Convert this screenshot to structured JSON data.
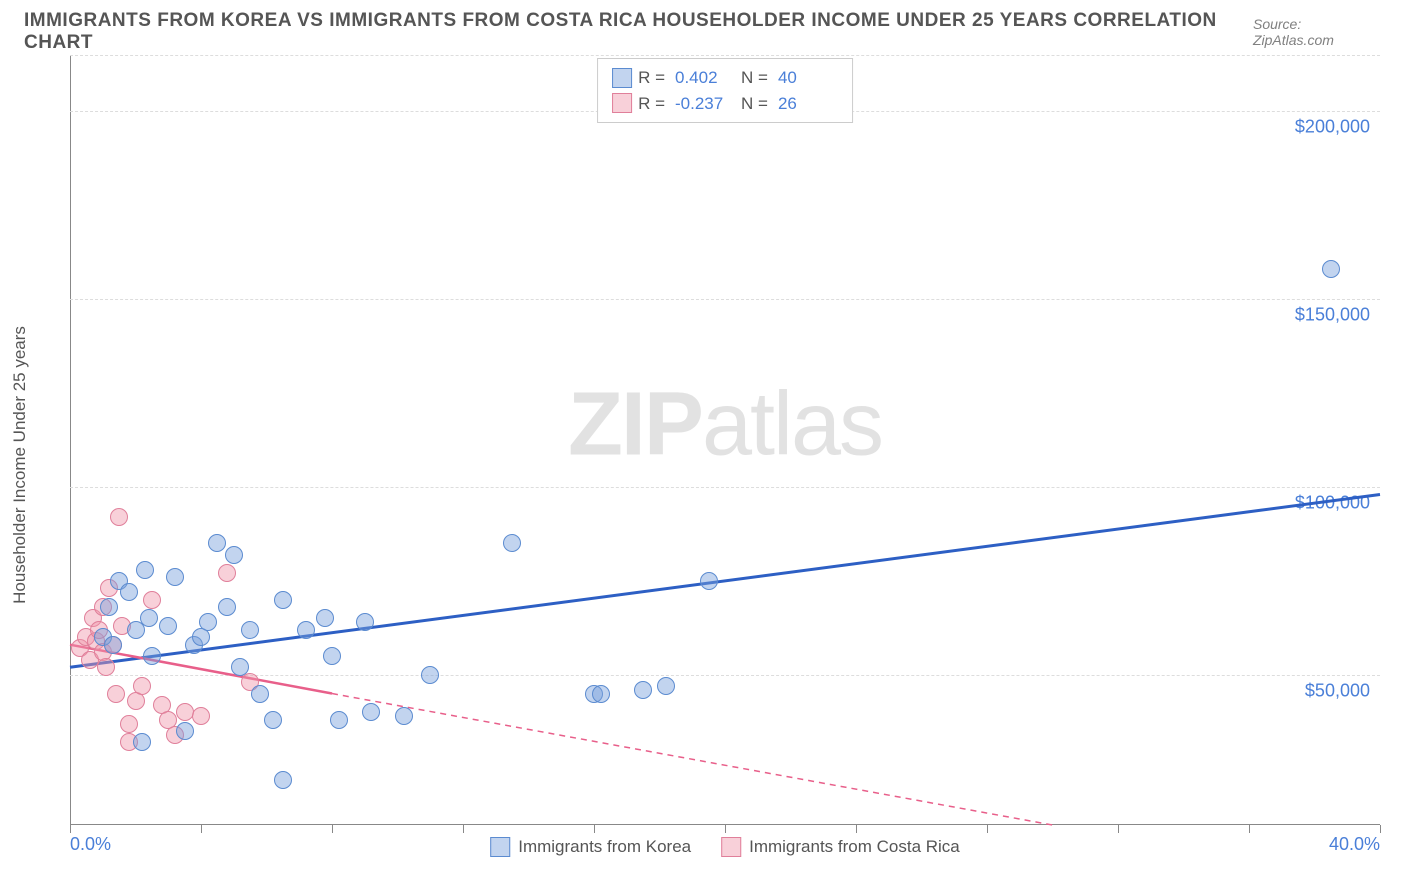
{
  "title": "IMMIGRANTS FROM KOREA VS IMMIGRANTS FROM COSTA RICA HOUSEHOLDER INCOME UNDER 25 YEARS CORRELATION CHART",
  "source": "Source: ZipAtlas.com",
  "y_axis_label": "Householder Income Under 25 years",
  "watermark_bold": "ZIP",
  "watermark_rest": "atlas",
  "colors": {
    "series1_fill": "rgba(120,160,220,0.45)",
    "series1_stroke": "#5b8bd0",
    "series1_line": "#2d5fc4",
    "series2_fill": "rgba(240,150,170,0.45)",
    "series2_stroke": "#e07f9a",
    "series2_line": "#e85f8a",
    "grid": "#dddddd",
    "axis": "#888888",
    "text_axis": "#4a7fd8",
    "text_title": "#555555"
  },
  "chart": {
    "xlim": [
      0,
      40
    ],
    "ylim": [
      10000,
      215000
    ],
    "y_ticks": [
      50000,
      100000,
      150000,
      200000
    ],
    "y_tick_labels": [
      "$50,000",
      "$100,000",
      "$150,000",
      "$200,000"
    ],
    "x_ticks": [
      0,
      4,
      8,
      12,
      16,
      20,
      24,
      28,
      32,
      36,
      40
    ],
    "x_tick_labels": {
      "0": "0.0%",
      "40": "40.0%"
    },
    "point_radius": 9
  },
  "legend_top": {
    "rows": [
      {
        "swatch_fill": "rgba(120,160,220,0.45)",
        "swatch_stroke": "#5b8bd0",
        "r": "0.402",
        "n": "40"
      },
      {
        "swatch_fill": "rgba(240,150,170,0.45)",
        "swatch_stroke": "#e07f9a",
        "r": "-0.237",
        "n": "26"
      }
    ],
    "r_label": "R =",
    "n_label": "N ="
  },
  "legend_bottom": [
    {
      "swatch_fill": "rgba(120,160,220,0.45)",
      "swatch_stroke": "#5b8bd0",
      "label": "Immigrants from Korea"
    },
    {
      "swatch_fill": "rgba(240,150,170,0.45)",
      "swatch_stroke": "#e07f9a",
      "label": "Immigrants from Costa Rica"
    }
  ],
  "series1_points": [
    [
      1.0,
      60000
    ],
    [
      1.2,
      68000
    ],
    [
      1.5,
      75000
    ],
    [
      1.3,
      58000
    ],
    [
      2.0,
      62000
    ],
    [
      1.8,
      72000
    ],
    [
      2.3,
      78000
    ],
    [
      2.4,
      65000
    ],
    [
      2.5,
      55000
    ],
    [
      3.0,
      63000
    ],
    [
      3.2,
      76000
    ],
    [
      2.2,
      32000
    ],
    [
      3.5,
      35000
    ],
    [
      3.8,
      58000
    ],
    [
      4.0,
      60000
    ],
    [
      4.2,
      64000
    ],
    [
      4.5,
      85000
    ],
    [
      4.8,
      68000
    ],
    [
      5.0,
      82000
    ],
    [
      5.2,
      52000
    ],
    [
      5.5,
      62000
    ],
    [
      5.8,
      45000
    ],
    [
      6.2,
      38000
    ],
    [
      6.5,
      70000
    ],
    [
      6.5,
      22000
    ],
    [
      7.2,
      62000
    ],
    [
      7.8,
      65000
    ],
    [
      8.0,
      55000
    ],
    [
      8.2,
      38000
    ],
    [
      9.0,
      64000
    ],
    [
      9.2,
      40000
    ],
    [
      10.2,
      39000
    ],
    [
      11.0,
      50000
    ],
    [
      13.5,
      85000
    ],
    [
      16.0,
      45000
    ],
    [
      16.2,
      45000
    ],
    [
      17.5,
      46000
    ],
    [
      18.2,
      47000
    ],
    [
      19.5,
      75000
    ],
    [
      38.5,
      158000
    ]
  ],
  "series2_points": [
    [
      0.3,
      57000
    ],
    [
      0.5,
      60000
    ],
    [
      0.6,
      54000
    ],
    [
      0.7,
      65000
    ],
    [
      0.8,
      59000
    ],
    [
      0.9,
      62000
    ],
    [
      1.0,
      56000
    ],
    [
      1.0,
      68000
    ],
    [
      1.1,
      52000
    ],
    [
      1.2,
      73000
    ],
    [
      1.3,
      58000
    ],
    [
      1.4,
      45000
    ],
    [
      1.5,
      92000
    ],
    [
      1.6,
      63000
    ],
    [
      1.8,
      37000
    ],
    [
      1.8,
      32000
    ],
    [
      2.0,
      43000
    ],
    [
      2.2,
      47000
    ],
    [
      2.5,
      70000
    ],
    [
      2.8,
      42000
    ],
    [
      3.0,
      38000
    ],
    [
      3.2,
      34000
    ],
    [
      3.5,
      40000
    ],
    [
      4.0,
      39000
    ],
    [
      4.8,
      77000
    ],
    [
      5.5,
      48000
    ]
  ],
  "trend_lines": {
    "series1": {
      "x1": 0,
      "y1": 52000,
      "x2": 40,
      "y2": 98000,
      "dash": false
    },
    "series2_solid": {
      "x1": 0,
      "y1": 58000,
      "x2": 8,
      "y2": 45000
    },
    "series2_dash": {
      "x1": 8,
      "y1": 45000,
      "x2": 30,
      "y2": 10000
    }
  }
}
